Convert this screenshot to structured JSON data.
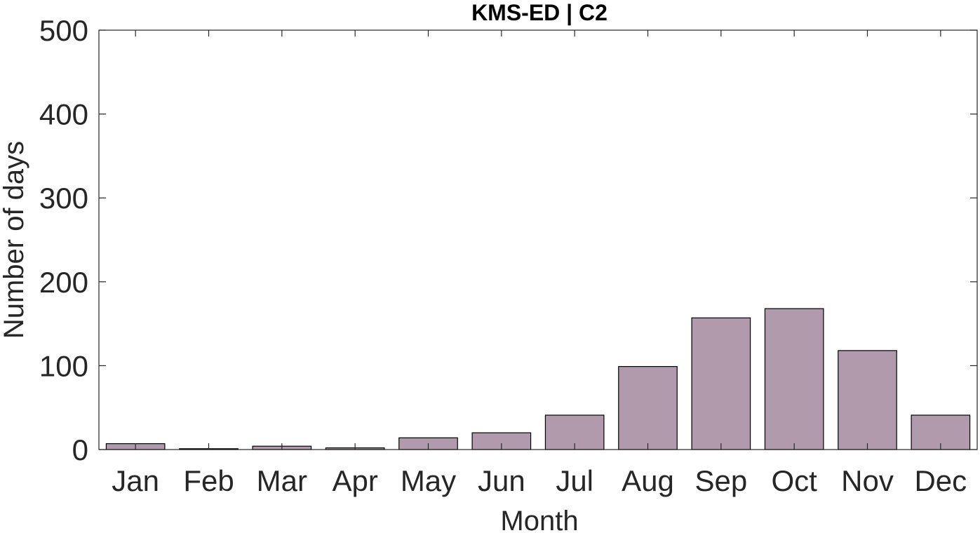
{
  "chart_data": {
    "type": "bar",
    "title": "KMS-ED | C2",
    "xlabel": "Month",
    "ylabel": "Number of days",
    "categories": [
      "Jan",
      "Feb",
      "Mar",
      "Apr",
      "May",
      "Jun",
      "Jul",
      "Aug",
      "Sep",
      "Oct",
      "Nov",
      "Dec"
    ],
    "values": [
      7,
      1,
      4,
      2,
      14,
      20,
      41,
      99,
      157,
      168,
      118,
      41
    ],
    "ylim": [
      0,
      500
    ],
    "yticks": [
      0,
      100,
      200,
      300,
      400,
      500
    ],
    "grid": false,
    "bar_color": "#b09aab",
    "edge_color": "#000000",
    "axis_color": "#262626"
  }
}
